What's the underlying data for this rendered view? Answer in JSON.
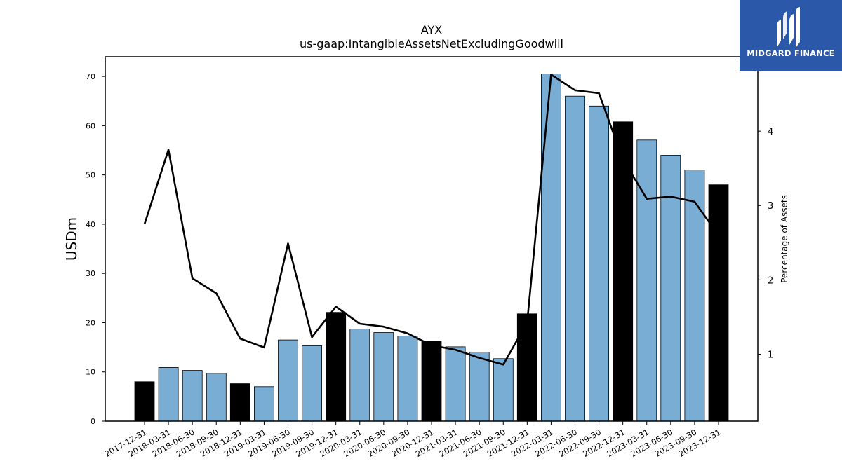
{
  "chart_data": {
    "type": "bar",
    "title": "AYX",
    "subtitle": "us-gaap:IntangibleAssetsNetExcludingGoodwill",
    "ylabel": "USDm",
    "y2label": "Percentage of Assets",
    "ylim": [
      0,
      74
    ],
    "y2lim": [
      0.1,
      5.0
    ],
    "yticks": [
      0,
      10,
      20,
      30,
      40,
      50,
      60,
      70
    ],
    "y2ticks": [
      1,
      2,
      3,
      4
    ],
    "grid": false,
    "categories": [
      "2017-12-31",
      "2018-03-31",
      "2018-06-30",
      "2018-09-30",
      "2018-12-31",
      "2019-03-31",
      "2019-06-30",
      "2019-09-30",
      "2019-12-31",
      "2020-03-31",
      "2020-06-30",
      "2020-09-30",
      "2020-12-31",
      "2021-03-31",
      "2021-06-30",
      "2021-09-30",
      "2021-12-31",
      "2022-03-31",
      "2022-06-30",
      "2022-09-30",
      "2022-12-31",
      "2023-03-31",
      "2023-06-30",
      "2023-09-30",
      "2023-12-31"
    ],
    "values": [
      8.0,
      10.9,
      10.3,
      9.7,
      7.6,
      7.0,
      16.5,
      15.3,
      22.1,
      18.7,
      18.0,
      17.3,
      16.3,
      15.1,
      14.0,
      12.7,
      21.8,
      70.5,
      66.0,
      64.0,
      60.8,
      57.1,
      54.0,
      51.0,
      48.0
    ],
    "year_end_flags": [
      true,
      false,
      false,
      false,
      true,
      false,
      false,
      false,
      true,
      false,
      false,
      false,
      true,
      false,
      false,
      false,
      true,
      false,
      false,
      false,
      true,
      false,
      false,
      false,
      true
    ],
    "line_values": [
      2.75,
      3.75,
      2.02,
      1.82,
      1.21,
      1.09,
      2.49,
      1.23,
      1.64,
      1.41,
      1.37,
      1.28,
      1.12,
      1.06,
      0.95,
      0.86,
      1.43,
      4.76,
      4.55,
      4.51,
      3.62,
      3.09,
      3.12,
      3.05,
      2.6
    ],
    "colors": {
      "bar": "#7aadd4",
      "bar_year_end": "#000000",
      "line": "#000000"
    }
  },
  "logo": {
    "text": "MIDGARD FINANCE",
    "background": "#2b58a8"
  }
}
